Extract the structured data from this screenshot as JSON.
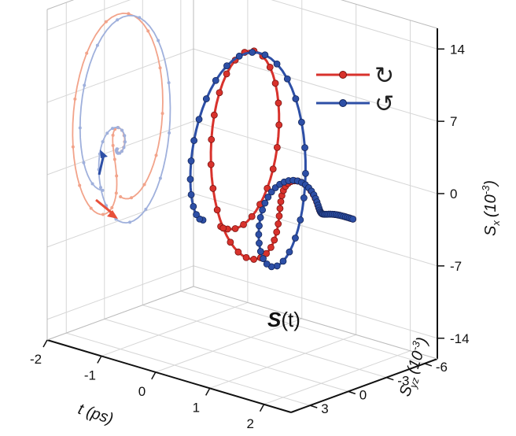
{
  "chart_data": {
    "type": "line",
    "title": "S(t)",
    "title_main": "S",
    "title_arg": "(t)",
    "x_axis": {
      "label": "t (ps)",
      "ticks": [
        "-2",
        "-1",
        "0",
        "1",
        "2"
      ],
      "range": [
        -2,
        2.5
      ]
    },
    "yz_axis": {
      "label": "S",
      "label_sub": "yz",
      "label_unit": "(10",
      "label_exp": "-3",
      "label_close": ")",
      "ticks": [
        "3",
        "0",
        "-3",
        "-6"
      ],
      "range": [
        -7,
        4.5
      ]
    },
    "z_axis": {
      "label": "S",
      "label_sub": "x",
      "label_unit": "(10",
      "label_exp": "-3",
      "label_close": ")",
      "ticks": [
        "14",
        "7",
        "0",
        "-7",
        "-14"
      ],
      "range": [
        -16,
        16
      ]
    },
    "legend": {
      "placement": "top-right"
    },
    "series": [
      {
        "legend_symbol": "↻",
        "color": "#d8322c",
        "note": "counter-clockwise orbit near t = 0, decaying spiral afterwards"
      },
      {
        "legend_symbol": "↺",
        "color": "#2d4fa6",
        "note": "clockwise orbit near t = 0, decaying spiral afterwards"
      }
    ],
    "projection_colors": {
      "red_light": "#f2a38a",
      "blue_light": "#9fb0dc"
    }
  }
}
